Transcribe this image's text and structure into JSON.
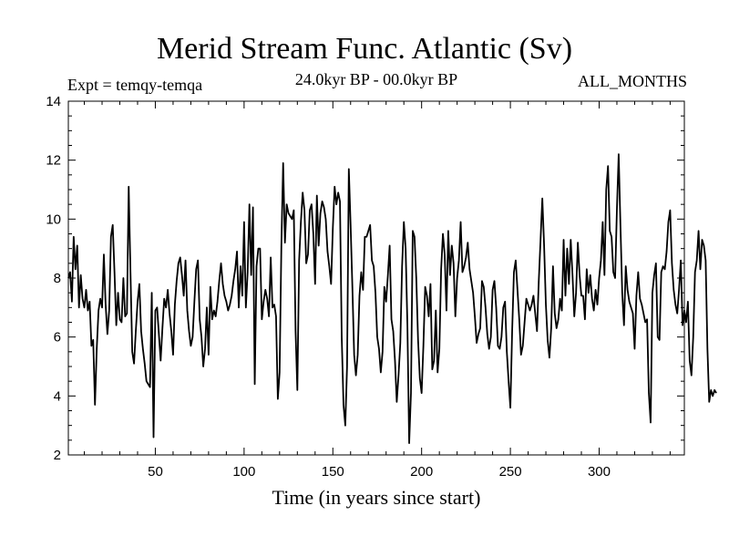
{
  "chart_data": {
    "type": "line",
    "title": "Merid Stream Func. Atlantic (Sv)",
    "expt_label": "Expt = temqy-temqa",
    "range_label": "24.0kyr BP - 00.0kyr BP",
    "months_label": "ALL_MONTHS",
    "xlabel": "Time (in years since start)",
    "ylabel": "",
    "xlim": [
      1,
      348
    ],
    "ylim": [
      2,
      14
    ],
    "xticks": [
      50,
      100,
      150,
      200,
      250,
      300
    ],
    "yticks": [
      2,
      4,
      6,
      8,
      10,
      12,
      14
    ],
    "x_start": 1,
    "x_step": 1,
    "series": [
      {
        "name": "Merid Stream Func. Atlantic",
        "color": "#000000",
        "values": [
          8.0,
          8.2,
          7.2,
          9.4,
          8.3,
          9.1,
          7.0,
          8.1,
          7.3,
          7.0,
          7.6,
          6.9,
          7.2,
          5.7,
          5.9,
          3.7,
          5.6,
          6.9,
          7.3,
          7.0,
          8.8,
          7.1,
          6.1,
          6.9,
          9.4,
          9.8,
          8.2,
          6.4,
          7.5,
          6.6,
          6.5,
          8.0,
          6.7,
          6.8,
          11.1,
          8.2,
          5.5,
          5.1,
          6.2,
          7.2,
          7.8,
          6.2,
          5.6,
          5.1,
          4.5,
          4.4,
          4.3,
          7.5,
          2.6,
          6.9,
          7.0,
          6.1,
          5.2,
          6.3,
          7.3,
          7.0,
          7.6,
          6.8,
          6.2,
          5.4,
          7.1,
          7.9,
          8.5,
          8.7,
          8.1,
          7.4,
          8.6,
          6.9,
          6.2,
          5.7,
          6.0,
          7.2,
          8.3,
          8.6,
          6.6,
          6.0,
          5.0,
          5.6,
          7.0,
          5.4,
          7.7,
          6.6,
          6.9,
          6.7,
          7.2,
          7.9,
          8.5,
          7.8,
          7.4,
          7.2,
          6.9,
          7.1,
          7.4,
          7.9,
          8.3,
          8.9,
          7.0,
          8.4,
          7.4,
          9.9,
          7.0,
          8.2,
          10.5,
          8.1,
          10.4,
          4.4,
          8.4,
          9.0,
          9.0,
          6.6,
          7.2,
          7.6,
          7.3,
          6.7,
          8.7,
          7.0,
          7.1,
          6.7,
          3.9,
          4.8,
          9.1,
          11.9,
          9.2,
          10.5,
          10.2,
          10.1,
          10.0,
          10.3,
          6.2,
          4.2,
          8.6,
          9.9,
          10.9,
          10.3,
          8.5,
          8.8,
          10.3,
          10.5,
          9.5,
          7.8,
          10.8,
          9.1,
          10.2,
          10.6,
          10.4,
          10.0,
          8.9,
          8.4,
          7.8,
          9.7,
          11.1,
          10.5,
          10.9,
          10.6,
          6.0,
          3.7,
          3.0,
          5.0,
          11.7,
          9.8,
          7.7,
          5.4,
          4.7,
          5.4,
          7.4,
          8.2,
          7.6,
          9.4,
          9.4,
          9.6,
          9.8,
          8.6,
          8.4,
          7.5,
          6.0,
          5.6,
          4.8,
          5.5,
          7.7,
          7.2,
          8.1,
          9.1,
          6.6,
          6.2,
          5.2,
          3.8,
          4.7,
          5.8,
          8.4,
          9.9,
          9.0,
          6.4,
          2.4,
          4.1,
          9.6,
          9.4,
          8.0,
          5.9,
          4.6,
          4.1,
          5.7,
          7.7,
          7.4,
          6.7,
          7.8,
          4.9,
          5.2,
          6.9,
          4.8,
          5.6,
          8.3,
          9.5,
          8.8,
          6.9,
          9.6,
          8.1,
          9.1,
          8.5,
          6.7,
          8.0,
          8.6,
          9.9,
          8.2,
          8.4,
          8.7,
          9.2,
          8.3,
          7.9,
          7.5,
          6.7,
          5.8,
          6.1,
          6.3,
          7.9,
          7.7,
          7.0,
          6.1,
          5.6,
          6.0,
          7.6,
          7.9,
          7.0,
          5.7,
          5.6,
          6.0,
          7.0,
          7.2,
          5.5,
          4.5,
          3.6,
          6.2,
          8.2,
          8.6,
          7.6,
          6.6,
          5.4,
          5.7,
          6.5,
          7.3,
          7.1,
          6.9,
          7.1,
          7.4,
          6.8,
          6.2,
          7.9,
          9.3,
          10.7,
          9.1,
          7.1,
          5.9,
          5.3,
          6.3,
          8.4,
          6.8,
          6.3,
          6.6,
          7.3,
          6.9,
          9.3,
          7.4,
          9.0,
          7.8,
          9.3,
          8.1,
          6.7,
          7.5,
          9.2,
          8.1,
          7.4,
          7.4,
          6.6,
          8.3,
          7.5,
          8.1,
          7.3,
          6.9,
          7.6,
          7.1,
          8.0,
          8.6,
          9.9,
          8.1,
          11.0,
          11.8,
          9.6,
          9.4,
          8.2,
          8.0,
          10.3,
          12.2,
          9.8,
          7.5,
          6.4,
          8.4,
          7.6,
          7.2,
          7.0,
          6.8,
          5.6,
          7.4,
          8.2,
          7.3,
          7.1,
          6.8,
          6.5,
          6.6,
          4.1,
          3.1,
          7.5,
          8.1,
          8.5,
          6.0,
          5.9,
          8.2,
          8.4,
          8.3,
          8.9,
          9.9,
          10.3,
          8.5,
          7.6,
          7.1,
          6.8,
          7.6,
          8.6,
          6.4,
          6.9,
          6.5,
          7.2,
          5.2,
          4.7,
          6.0,
          8.2,
          8.6,
          9.6,
          8.3,
          9.3,
          9.1,
          8.6,
          5.6,
          3.8,
          4.2,
          4.0,
          4.2,
          4.1
        ]
      }
    ]
  }
}
